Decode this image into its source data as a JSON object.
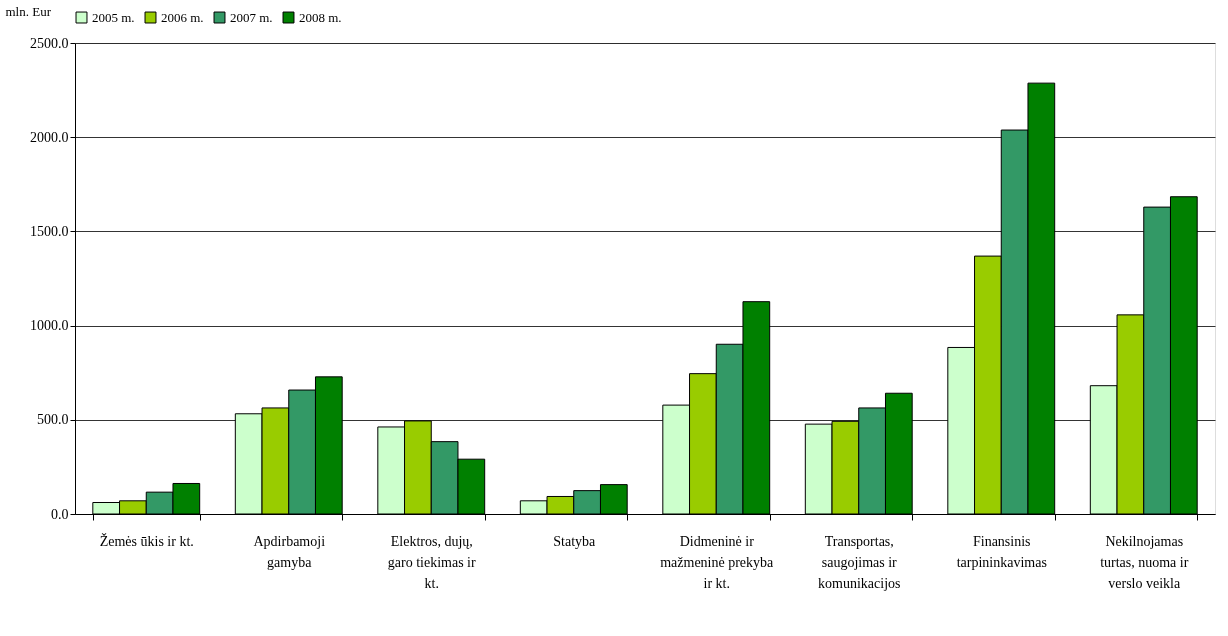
{
  "chart_data": {
    "type": "bar",
    "ylabel": "mln. Eur",
    "categories": [
      "Žemės ūkis ir kt.",
      "Apdirbamoji gamyba",
      "Elektros, dujų, garo tiekimas ir kt.",
      "Statyba",
      "Didmeninė ir mažmeninė prekyba ir kt.",
      "Transportas, saugojimas ir komunikacijos",
      "Finansinis tarpininkavimas",
      "Nekilnojamas turtas, nuoma ir verslo veikla"
    ],
    "series": [
      {
        "name": "2005 m.",
        "color": "#ccffcc",
        "values": [
          61,
          532,
          462,
          70,
          578,
          477,
          884,
          681
        ]
      },
      {
        "name": "2006 m.",
        "color": "#99cc00",
        "values": [
          70,
          563,
          494,
          93,
          745,
          492,
          1369,
          1057
        ]
      },
      {
        "name": "2007 m.",
        "color": "#339966",
        "values": [
          116,
          658,
          384,
          124,
          901,
          563,
          2038,
          1629
        ]
      },
      {
        "name": "2008 m.",
        "color": "#008000",
        "values": [
          162,
          728,
          291,
          156,
          1127,
          641,
          2287,
          1684
        ]
      }
    ],
    "ylim": [
      0,
      2500
    ],
    "yticks": [
      {
        "value": 0,
        "label": "0.0"
      },
      {
        "value": 500,
        "label": "500.0"
      },
      {
        "value": 1000,
        "label": "1000.0"
      },
      {
        "value": 1500,
        "label": "1500.0"
      },
      {
        "value": 2000,
        "label": "2000.0"
      },
      {
        "value": 2500,
        "label": "2500.0"
      }
    ],
    "grid": "y",
    "legend": "top"
  }
}
